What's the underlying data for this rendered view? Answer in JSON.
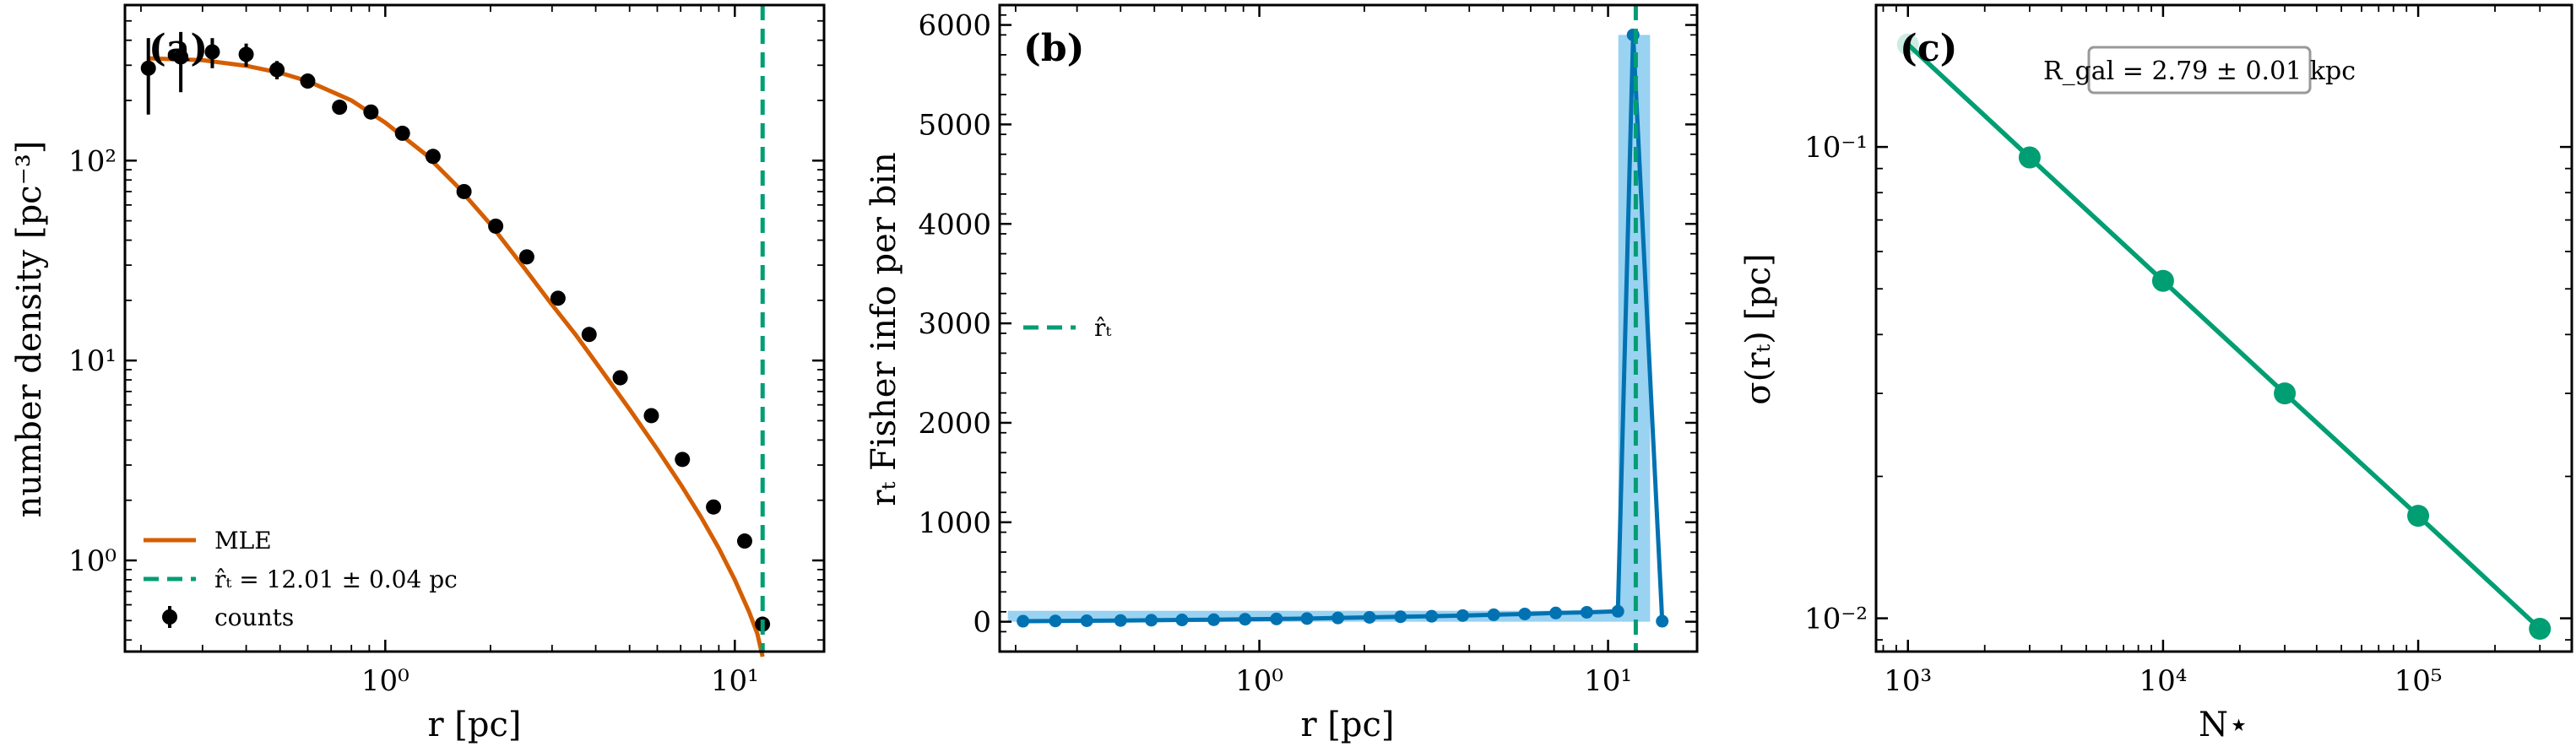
{
  "colors": {
    "mle": "#d55e00",
    "green": "#009e73",
    "blue": "#0072b2",
    "blue_fill": "#56b4e9",
    "black": "#000000"
  },
  "chart_data": [
    {
      "id": "a",
      "type": "scatter",
      "panel_label": "(a)",
      "xlabel": "r  [pc]",
      "ylabel": "number density  [pc⁻³]",
      "xscale": "log",
      "yscale": "log",
      "xlim": [
        0.18,
        18
      ],
      "ylim": [
        0.35,
        600
      ],
      "x_tick_values": [
        1,
        10
      ],
      "x_tick_labels": [
        "10⁰",
        "10¹"
      ],
      "y_tick_values": [
        1,
        10,
        100
      ],
      "y_tick_labels": [
        "10⁰",
        "10¹",
        "10²"
      ],
      "vline": 12.01,
      "legend": {
        "position": "lower-left",
        "entries": [
          "MLE",
          "r̂ₜ = 12.01 ± 0.04 pc",
          "counts"
        ]
      },
      "series": [
        {
          "name": "counts",
          "x": [
            0.21,
            0.26,
            0.32,
            0.4,
            0.49,
            0.6,
            0.74,
            0.91,
            1.12,
            1.37,
            1.68,
            2.07,
            2.54,
            3.12,
            3.83,
            4.7,
            5.77,
            7.08,
            8.69,
            10.67,
            12.0
          ],
          "y": [
            290,
            330,
            350,
            340,
            285,
            250,
            185,
            175,
            137,
            105,
            70,
            47,
            33,
            20.5,
            13.5,
            8.2,
            5.3,
            3.2,
            1.85,
            1.25,
            0.48
          ],
          "yerr": [
            [
              120,
              110,
              60,
              45,
              30,
              20,
              12,
              10,
              8,
              6,
              4,
              3,
              2,
              1.3,
              0.9,
              0.6,
              0.4,
              0.25,
              0.15,
              0.1,
              0.04
            ],
            [
              120,
              110,
              60,
              45,
              30,
              20,
              12,
              10,
              8,
              6,
              4,
              3,
              2,
              1.3,
              0.9,
              0.6,
              0.4,
              0.25,
              0.15,
              0.1,
              0.04
            ]
          ]
        },
        {
          "name": "MLE",
          "x": [
            0.21,
            0.3,
            0.4,
            0.5,
            0.6,
            0.8,
            1.0,
            1.3,
            1.6,
            2.0,
            2.5,
            3.0,
            3.5,
            4.0,
            5.0,
            6.0,
            7.0,
            8.0,
            9.0,
            10.0,
            11.0,
            11.6,
            12.01
          ],
          "y": [
            325,
            318,
            298,
            275,
            250,
            200,
            155,
            108,
            75,
            48,
            29,
            19,
            13.5,
            9.8,
            5.7,
            3.6,
            2.4,
            1.65,
            1.15,
            0.8,
            0.55,
            0.43,
            0.33
          ]
        }
      ]
    },
    {
      "id": "b",
      "type": "line",
      "panel_label": "(b)",
      "xlabel": "r  [pc]",
      "ylabel": "rₜ Fisher info per bin",
      "xscale": "log",
      "yscale": "linear",
      "xlim": [
        0.18,
        18
      ],
      "ylim": [
        -300,
        6200
      ],
      "x_tick_values": [
        1,
        10
      ],
      "x_tick_labels": [
        "10⁰",
        "10¹"
      ],
      "y_tick_values": [
        0,
        1000,
        2000,
        3000,
        4000,
        5000,
        6000
      ],
      "y_tick_labels": [
        "0",
        "1000",
        "2000",
        "3000",
        "4000",
        "5000",
        "6000"
      ],
      "vline": 12.01,
      "legend": {
        "position": "center-left",
        "entries": [
          "r̂ₜ"
        ]
      },
      "series": [
        {
          "name": "Fisher info",
          "x": [
            0.21,
            0.26,
            0.32,
            0.4,
            0.49,
            0.6,
            0.74,
            0.91,
            1.12,
            1.37,
            1.68,
            2.07,
            2.54,
            3.12,
            3.83,
            4.7,
            5.77,
            7.08,
            8.69,
            10.67,
            11.8,
            14.3
          ],
          "y": [
            5,
            8,
            10,
            12,
            15,
            18,
            20,
            25,
            28,
            32,
            38,
            44,
            50,
            55,
            62,
            70,
            78,
            88,
            95,
            105,
            5900,
            5
          ]
        }
      ],
      "hist_bins": [
        {
          "x0": 0.19,
          "x1": 10.7,
          "y": 110
        },
        {
          "x0": 10.7,
          "x1": 13.2,
          "y": 5900
        }
      ]
    },
    {
      "id": "c",
      "type": "line",
      "panel_label": "(c)",
      "xlabel": "N⋆",
      "ylabel": "σ(rₜ)  [pc]",
      "xscale": "log",
      "yscale": "log",
      "xlim": [
        750,
        400000
      ],
      "ylim": [
        0.0085,
        0.2
      ],
      "x_tick_values": [
        1000,
        10000,
        100000
      ],
      "x_tick_labels": [
        "10³",
        "10⁴",
        "10⁵"
      ],
      "y_tick_values": [
        0.01,
        0.1
      ],
      "y_tick_labels": [
        "10⁻²",
        "10⁻¹"
      ],
      "annotation": "R_gal = 2.79 ± 0.01 kpc",
      "series": [
        {
          "name": "sigma",
          "x": [
            1000,
            3000,
            10000,
            30000,
            100000,
            300000
          ],
          "y": [
            0.165,
            0.095,
            0.052,
            0.03,
            0.0165,
            0.0095
          ]
        }
      ]
    }
  ]
}
